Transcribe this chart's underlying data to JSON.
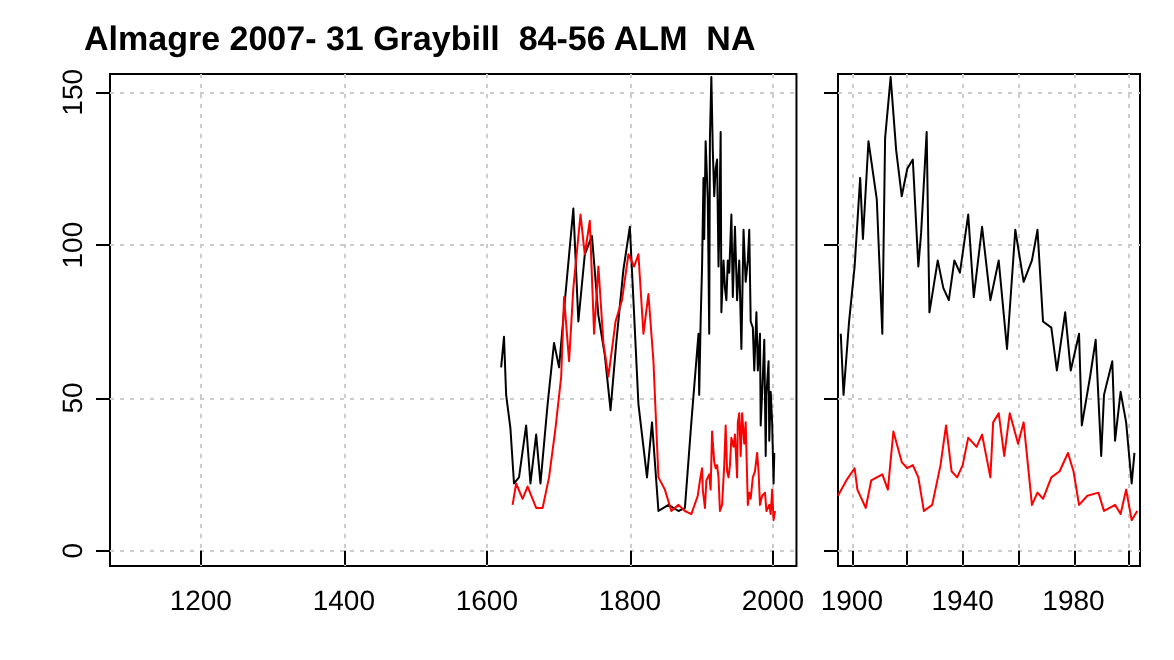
{
  "chart_data": [
    {
      "type": "line",
      "title": "Almagre 2007- 31 Graybill  84-56 ALM  NA",
      "xlim": [
        1073,
        2033
      ],
      "ylim": [
        -5,
        156
      ],
      "xticks": [
        1200,
        1400,
        1600,
        1800,
        2000
      ],
      "yticks": [
        0,
        50,
        100,
        150
      ],
      "grid": true,
      "marker": "none",
      "line_style": "solid",
      "series": [
        {
          "color": "#000000",
          "x": [
            1620,
            1624,
            1627,
            1633,
            1638,
            1645,
            1655,
            1661,
            1669,
            1675,
            1685,
            1694,
            1701,
            1710,
            1721,
            1728,
            1737,
            1747,
            1756,
            1765,
            1773,
            1781,
            1791,
            1800,
            1805,
            1812,
            1824,
            1831,
            1840,
            1854,
            1868,
            1877,
            1886,
            1896,
            1897,
            1899,
            1901,
            1903,
            1904,
            1906,
            1909,
            1911,
            1912,
            1914,
            1916,
            1918,
            1920,
            1922,
            1924,
            1925,
            1927,
            1928,
            1931,
            1933,
            1935,
            1937,
            1939,
            1942,
            1944,
            1947,
            1950,
            1953,
            1956,
            1959,
            1962,
            1965,
            1967,
            1969,
            1972,
            1974,
            1977,
            1979,
            1982,
            1983,
            1986,
            1988,
            1990,
            1991,
            1994,
            1995,
            1997,
            1999,
            2001,
            2002
          ],
          "values": [
            60,
            70,
            51,
            40,
            22,
            24,
            41,
            22,
            38,
            22,
            48,
            68,
            60,
            84,
            112,
            75,
            97,
            103,
            77,
            64,
            46,
            68,
            92,
            106,
            82,
            48,
            24,
            42,
            13,
            15,
            13,
            14,
            42,
            71,
            51,
            75,
            93,
            122,
            102,
            134,
            115,
            71,
            135,
            155,
            131,
            116,
            125,
            128,
            93,
            104,
            137,
            78,
            95,
            86,
            82,
            95,
            91,
            110,
            83,
            106,
            82,
            95,
            66,
            105,
            88,
            95,
            105,
            75,
            73,
            59,
            78,
            59,
            71,
            41,
            57,
            69,
            31,
            51,
            62,
            36,
            52,
            42,
            22,
            32
          ]
        },
        {
          "color": "#ff0000",
          "x": [
            1636,
            1641,
            1650,
            1657,
            1669,
            1678,
            1687,
            1696,
            1704,
            1708,
            1715,
            1721,
            1731,
            1737,
            1744,
            1750,
            1756,
            1763,
            1770,
            1780,
            1789,
            1798,
            1806,
            1812,
            1819,
            1826,
            1833,
            1840,
            1849,
            1858,
            1868,
            1877,
            1886,
            1895,
            1898,
            1901,
            1902,
            1905,
            1907,
            1909,
            1911,
            1913,
            1915,
            1918,
            1920,
            1922,
            1924,
            1926,
            1929,
            1932,
            1934,
            1936,
            1938,
            1940,
            1942,
            1945,
            1947,
            1950,
            1951,
            1953,
            1955,
            1957,
            1960,
            1962,
            1965,
            1967,
            1969,
            1972,
            1975,
            1978,
            1980,
            1982,
            1985,
            1989,
            1991,
            1995,
            1997,
            1999,
            2001,
            2003
          ],
          "values": [
            15,
            22,
            17,
            21,
            14,
            14,
            24,
            40,
            57,
            83,
            62,
            86,
            110,
            97,
            108,
            71,
            93,
            68,
            57,
            75,
            82,
            97,
            93,
            97,
            71,
            84,
            62,
            24,
            20,
            13,
            15,
            13,
            12,
            18,
            23,
            27,
            20,
            14,
            23,
            24,
            25,
            20,
            39,
            29,
            27,
            28,
            24,
            13,
            15,
            28,
            41,
            26,
            24,
            28,
            37,
            34,
            38,
            24,
            42,
            45,
            31,
            45,
            35,
            42,
            15,
            19,
            17,
            24,
            26,
            32,
            26,
            15,
            18,
            19,
            13,
            15,
            12,
            20,
            10,
            13
          ]
        }
      ]
    },
    {
      "type": "line",
      "xlim": [
        1895,
        2004
      ],
      "ylim": [
        -5,
        156
      ],
      "xticks": [
        1900,
        {
          "value": 1920,
          "label": null
        },
        1940,
        {
          "value": 1960,
          "label": null
        },
        1980,
        {
          "value": 2000,
          "label": null
        }
      ],
      "yticks": [
        0,
        50,
        100,
        150
      ],
      "tick_labels": "x",
      "grid": true,
      "marker": "none",
      "line_style": "solid",
      "series": [
        {
          "color": "#000000",
          "x": [
            1896,
            1897,
            1899,
            1901,
            1903,
            1904,
            1906,
            1909,
            1911,
            1912,
            1914,
            1916,
            1918,
            1920,
            1922,
            1924,
            1925,
            1927,
            1928,
            1931,
            1933,
            1935,
            1937,
            1939,
            1942,
            1944,
            1947,
            1950,
            1953,
            1956,
            1959,
            1962,
            1965,
            1967,
            1969,
            1972,
            1974,
            1977,
            1979,
            1982,
            1983,
            1986,
            1988,
            1990,
            1991,
            1994,
            1995,
            1997,
            1999,
            2001,
            2002
          ],
          "values": [
            71,
            51,
            75,
            93,
            122,
            102,
            134,
            115,
            71,
            135,
            155,
            131,
            116,
            125,
            128,
            93,
            104,
            137,
            78,
            95,
            86,
            82,
            95,
            91,
            110,
            83,
            106,
            82,
            95,
            66,
            105,
            88,
            95,
            105,
            75,
            73,
            59,
            78,
            59,
            71,
            41,
            57,
            69,
            31,
            51,
            62,
            36,
            52,
            42,
            22,
            32
          ]
        },
        {
          "color": "#ff0000",
          "x": [
            1895,
            1898,
            1901,
            1902,
            1905,
            1907,
            1909,
            1911,
            1913,
            1915,
            1918,
            1920,
            1922,
            1924,
            1926,
            1929,
            1932,
            1934,
            1936,
            1938,
            1940,
            1942,
            1945,
            1947,
            1950,
            1951,
            1953,
            1955,
            1957,
            1960,
            1962,
            1965,
            1967,
            1969,
            1972,
            1975,
            1978,
            1980,
            1982,
            1985,
            1989,
            1991,
            1995,
            1997,
            1999,
            2001,
            2003
          ],
          "values": [
            18,
            23,
            27,
            20,
            14,
            23,
            24,
            25,
            20,
            39,
            29,
            27,
            28,
            24,
            13,
            15,
            28,
            41,
            26,
            24,
            28,
            37,
            34,
            38,
            24,
            42,
            45,
            31,
            45,
            35,
            42,
            15,
            19,
            17,
            24,
            26,
            32,
            26,
            15,
            18,
            19,
            13,
            15,
            12,
            20,
            10,
            13
          ]
        }
      ]
    }
  ]
}
